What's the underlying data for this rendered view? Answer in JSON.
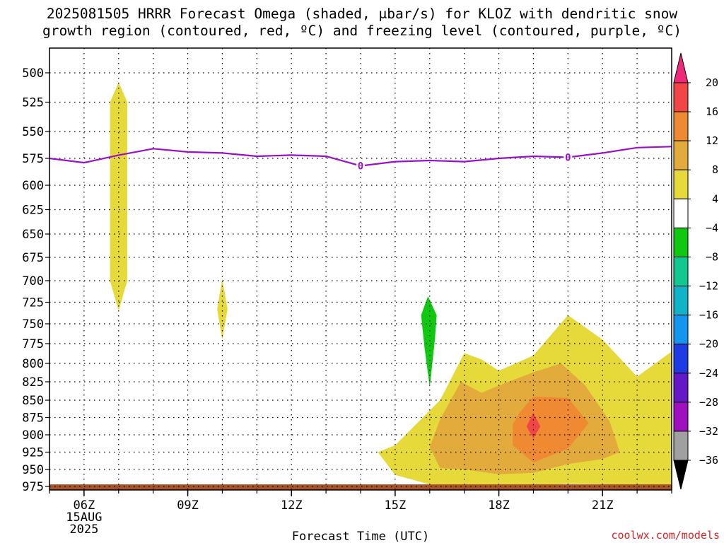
{
  "title": {
    "line1": "2025081505 HRRR Forecast Omega (shaded, μbar/s) for KLOZ with dendritic snow",
    "line2": "growth region (contoured, red, ºC) and freezing level (contoured, purple, ºC)"
  },
  "credit": "coolwx.com/models",
  "chart_data": {
    "type": "heatmap",
    "title": "2025081505 HRRR Forecast Omega (shaded, μbar/s) for KLOZ with dendritic snow growth region (contoured, red, ºC) and freezing level (contoured, purple, ºC)",
    "xlabel": "Forecast Time (UTC)",
    "ylabel": "",
    "x_range_hours": [
      5,
      23
    ],
    "y_range_mb": [
      975,
      475
    ],
    "y_ticks": [
      500,
      525,
      550,
      575,
      600,
      625,
      650,
      675,
      700,
      725,
      750,
      775,
      800,
      825,
      850,
      875,
      900,
      925,
      950,
      975
    ],
    "x_ticks": [
      {
        "hour": 6,
        "label": "06Z",
        "date": "15AUG",
        "year": "2025"
      },
      {
        "hour": 9,
        "label": "09Z"
      },
      {
        "hour": 12,
        "label": "12Z"
      },
      {
        "hour": 15,
        "label": "15Z"
      },
      {
        "hour": 18,
        "label": "18Z"
      },
      {
        "hour": 21,
        "label": "21Z"
      }
    ],
    "grid": true,
    "colorbar": {
      "levels": [
        20,
        16,
        12,
        8,
        4,
        -4,
        -8,
        -12,
        -16,
        -20,
        -24,
        -28,
        -32,
        -36
      ],
      "colors": [
        "#f0287a",
        "#f24646",
        "#ef8a32",
        "#e3ab3c",
        "#e6d93a",
        "#ffffff",
        "#10c810",
        "#10c890",
        "#10b4c8",
        "#1496f0",
        "#1e3ce6",
        "#6418c8",
        "#a010c0",
        "#a0a0a0",
        "#000000"
      ],
      "placement": "right"
    },
    "freezing_level": {
      "contour_label": "0",
      "color": "#9a10c8",
      "points": [
        [
          5,
          575
        ],
        [
          6,
          579
        ],
        [
          7,
          572
        ],
        [
          8,
          566
        ],
        [
          9,
          569
        ],
        [
          10,
          570
        ],
        [
          11,
          573
        ],
        [
          12,
          572
        ],
        [
          13,
          573
        ],
        [
          14,
          582
        ],
        [
          15,
          578
        ],
        [
          16,
          577
        ],
        [
          17,
          578
        ],
        [
          18,
          575
        ],
        [
          19,
          573
        ],
        [
          20,
          574
        ],
        [
          21,
          570
        ],
        [
          22,
          565
        ],
        [
          23,
          564
        ]
      ]
    },
    "omega_regions": [
      {
        "level": "4 to 8",
        "color": "#e6d93a",
        "points": [
          [
            6.75,
            525
          ],
          [
            7.0,
            508
          ],
          [
            7.25,
            525
          ],
          [
            7.25,
            700
          ],
          [
            7.0,
            735
          ],
          [
            6.75,
            700
          ]
        ]
      },
      {
        "level": "4 to 8",
        "color": "#e6d93a",
        "points": [
          [
            9.85,
            733
          ],
          [
            10.0,
            698
          ],
          [
            10.15,
            733
          ],
          [
            10.0,
            770
          ]
        ]
      },
      {
        "level": "-8 to -4",
        "color": "#10c810",
        "points": [
          [
            15.75,
            740
          ],
          [
            15.95,
            718
          ],
          [
            16.2,
            740
          ],
          [
            16.15,
            770
          ],
          [
            16.0,
            832
          ],
          [
            15.85,
            780
          ]
        ]
      },
      {
        "level": "4 to 8",
        "color": "#e6d93a",
        "points": [
          [
            14.5,
            925
          ],
          [
            15.0,
            915
          ],
          [
            16.3,
            850
          ],
          [
            17.0,
            787
          ],
          [
            17.5,
            795
          ],
          [
            18.0,
            810
          ],
          [
            19.0,
            790
          ],
          [
            20.0,
            740
          ],
          [
            21.0,
            770
          ],
          [
            22.0,
            818
          ],
          [
            23.0,
            785
          ],
          [
            23.0,
            975
          ],
          [
            22.0,
            975
          ],
          [
            21.0,
            972
          ],
          [
            20.0,
            971
          ],
          [
            19.0,
            975
          ],
          [
            18.0,
            975
          ],
          [
            17.0,
            975
          ],
          [
            16.0,
            972
          ],
          [
            15.0,
            958
          ]
        ]
      },
      {
        "level": "8 to 12",
        "color": "#e3ab3c",
        "points": [
          [
            16.0,
            918
          ],
          [
            16.3,
            878
          ],
          [
            16.9,
            825
          ],
          [
            17.5,
            840
          ],
          [
            18.0,
            830
          ],
          [
            19.0,
            812
          ],
          [
            19.8,
            800
          ],
          [
            20.5,
            830
          ],
          [
            21.2,
            880
          ],
          [
            21.5,
            925
          ],
          [
            21.0,
            935
          ],
          [
            20.0,
            942
          ],
          [
            19.0,
            955
          ],
          [
            18.0,
            957
          ],
          [
            17.0,
            950
          ],
          [
            16.3,
            948
          ]
        ]
      },
      {
        "level": "12 to 16",
        "color": "#ef8a32",
        "points": [
          [
            18.6,
            868
          ],
          [
            19.0,
            845
          ],
          [
            20.0,
            847
          ],
          [
            20.6,
            883
          ],
          [
            20.0,
            920
          ],
          [
            19.0,
            940
          ],
          [
            18.4,
            915
          ],
          [
            18.4,
            885
          ]
        ]
      },
      {
        "level": "16 to 20",
        "color": "#f24646",
        "points": [
          [
            19.0,
            868
          ],
          [
            19.2,
            888
          ],
          [
            19.0,
            905
          ],
          [
            18.8,
            888
          ]
        ]
      }
    ],
    "terrain": {
      "color": "#a5512a",
      "top_mb": 972
    }
  }
}
